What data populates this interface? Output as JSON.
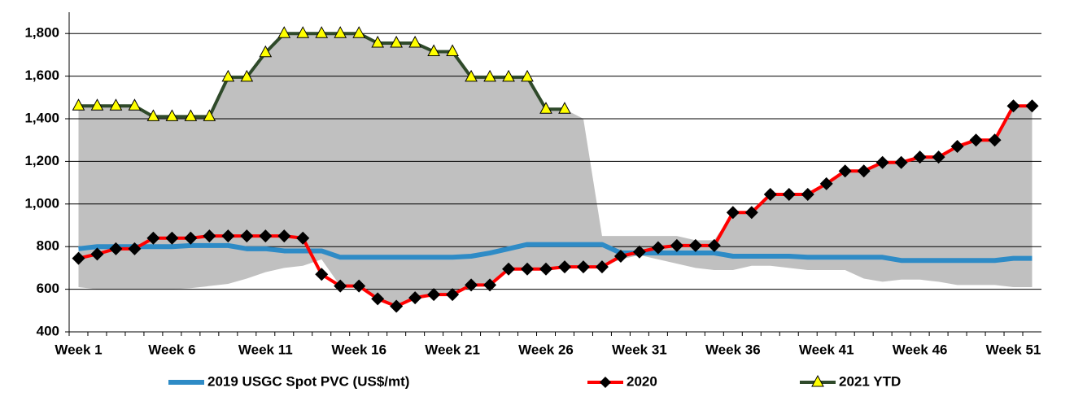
{
  "chart_data": {
    "type": "line",
    "categories": [
      "Week 1",
      null,
      null,
      null,
      null,
      "Week 6",
      null,
      null,
      null,
      null,
      "Week 11",
      null,
      null,
      null,
      null,
      "Week 16",
      null,
      null,
      null,
      null,
      "Week 21",
      null,
      null,
      null,
      null,
      "Week 26",
      null,
      null,
      null,
      null,
      "Week 31",
      null,
      null,
      null,
      null,
      "Week 36",
      null,
      null,
      null,
      null,
      "Week 41",
      null,
      null,
      null,
      null,
      "Week 46",
      null,
      null,
      null,
      null,
      "Week 51",
      null
    ],
    "ylim": [
      400,
      1900
    ],
    "yticks": [
      400,
      600,
      800,
      {
        "value": 1000,
        "label": "1,000"
      },
      {
        "value": 1200,
        "label": "1,200"
      },
      {
        "value": 1400,
        "label": "1,400"
      },
      {
        "value": 1600,
        "label": "1,600"
      },
      {
        "value": 1800,
        "label": "1,800"
      }
    ],
    "grid": true,
    "legend": "bottom",
    "band": {
      "color": "#c0c0c0",
      "low": [
        610,
        600,
        600,
        600,
        600,
        600,
        605,
        615,
        625,
        650,
        680,
        700,
        710,
        740,
        615,
        615,
        555,
        520,
        560,
        575,
        575,
        620,
        620,
        695,
        695,
        695,
        705,
        705,
        705,
        740,
        760,
        740,
        720,
        700,
        690,
        690,
        710,
        710,
        700,
        690,
        690,
        690,
        650,
        635,
        645,
        645,
        635,
        620,
        620,
        620,
        610,
        610
      ],
      "high": [
        1460,
        1460,
        1460,
        1460,
        1410,
        1410,
        1410,
        1410,
        1595,
        1595,
        1710,
        1800,
        1800,
        1800,
        1800,
        1800,
        1755,
        1755,
        1755,
        1715,
        1715,
        1595,
        1595,
        1595,
        1595,
        1445,
        1445,
        1400,
        850,
        850,
        850,
        850,
        850,
        830,
        830,
        960,
        960,
        1045,
        1045,
        1045,
        1095,
        1155,
        1155,
        1195,
        1195,
        1220,
        1220,
        1270,
        1300,
        1300,
        1460,
        1460
      ]
    },
    "series": [
      {
        "name": "2019 USGC Spot PVC (US$/mt)",
        "color": "#2e8bc6",
        "marker": "none",
        "values": [
          790,
          800,
          800,
          800,
          800,
          800,
          805,
          805,
          805,
          790,
          790,
          780,
          780,
          780,
          750,
          750,
          750,
          750,
          750,
          750,
          750,
          755,
          770,
          790,
          810,
          810,
          810,
          810,
          810,
          770,
          770,
          770,
          770,
          770,
          770,
          755,
          755,
          755,
          755,
          750,
          750,
          750,
          750,
          750,
          735,
          735,
          735,
          735,
          735,
          735,
          745,
          745
        ]
      },
      {
        "name": "2020",
        "color": "#ff0000",
        "marker": "diamond",
        "marker_color": "#000000",
        "values": [
          745,
          765,
          790,
          790,
          840,
          840,
          840,
          850,
          850,
          850,
          850,
          850,
          840,
          670,
          615,
          615,
          555,
          520,
          560,
          575,
          575,
          620,
          620,
          695,
          695,
          695,
          705,
          705,
          705,
          755,
          775,
          795,
          805,
          805,
          805,
          960,
          960,
          1045,
          1045,
          1045,
          1095,
          1155,
          1155,
          1195,
          1195,
          1220,
          1220,
          1270,
          1300,
          1300,
          1460,
          1460
        ]
      },
      {
        "name": "2021 YTD",
        "color": "#2f4a2a",
        "marker": "triangle",
        "marker_color": "#ffff00",
        "values": [
          1460,
          1460,
          1460,
          1460,
          1410,
          1410,
          1410,
          1410,
          1595,
          1595,
          1710,
          1800,
          1800,
          1800,
          1800,
          1800,
          1755,
          1755,
          1755,
          1715,
          1715,
          1595,
          1595,
          1595,
          1595,
          1445,
          1445,
          null,
          null,
          null,
          null,
          null,
          null,
          null,
          null,
          null,
          null,
          null,
          null,
          null,
          null,
          null,
          null,
          null,
          null,
          null,
          null,
          null,
          null,
          null,
          null,
          null
        ]
      }
    ]
  }
}
